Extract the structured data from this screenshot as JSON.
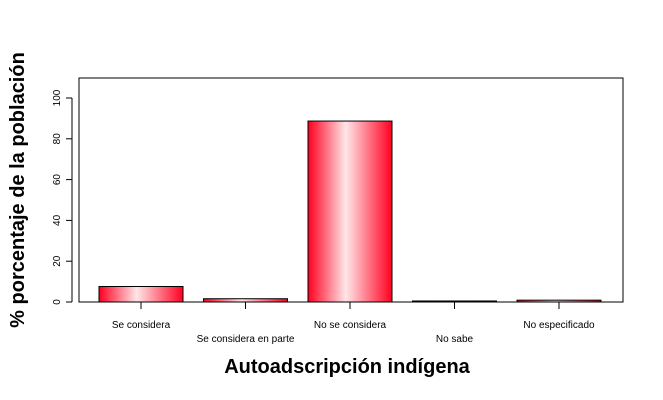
{
  "chart_data": {
    "type": "bar",
    "title": "",
    "xlabel": "Autoadscripción indígena",
    "ylabel": "% porcentaje de la población",
    "categories": [
      "Se considera",
      "Se considera en parte",
      "No se considera",
      "No sabe",
      "No especificado"
    ],
    "values": [
      7.6,
      1.6,
      88.7,
      0.5,
      0.9
    ],
    "ylim": [
      0,
      100
    ],
    "yticks": [
      0,
      20,
      40,
      60,
      80,
      100
    ],
    "grid": false,
    "legend": "none",
    "colors": {
      "bar_edge": "#ff0020",
      "bar_center": "#ffe6e8",
      "bar_outline": "#000000",
      "axis": "#000000"
    }
  }
}
